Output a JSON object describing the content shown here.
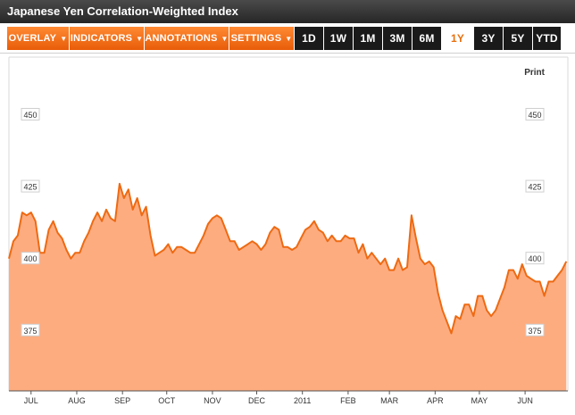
{
  "title": "Japanese Yen Correlation-Weighted Index",
  "toolbar": {
    "menus": [
      "OVERLAY",
      "INDICATORS",
      "ANNOTATIONS",
      "SETTINGS"
    ],
    "ranges": [
      "1D",
      "1W",
      "1M",
      "3M",
      "6M",
      "1Y",
      "3Y",
      "5Y",
      "YTD"
    ],
    "active_range": "1Y"
  },
  "print_label": "Print",
  "colors": {
    "accent": "#e8700e",
    "line": "#ee6a12",
    "fill": "#fdac80",
    "titlebar": "#333333"
  },
  "chart_data": {
    "type": "area",
    "title": "",
    "xlabel": "",
    "ylabel": "",
    "ylim": [
      354,
      470
    ],
    "yticks": [
      375,
      400,
      425,
      450
    ],
    "ytick_labels": [
      "375",
      "400",
      "425",
      "450"
    ],
    "x_range": [
      "2010-06-16",
      "2011-06-30"
    ],
    "xtick_labels": [
      "JUL",
      "AUG",
      "SEP",
      "OCT",
      "NOV",
      "DEC",
      "2011",
      "FEB",
      "MAR",
      "APR",
      "MAY",
      "JUN"
    ],
    "xtick_dates": [
      "2010-07-01",
      "2010-08-01",
      "2010-09-01",
      "2010-10-01",
      "2010-11-01",
      "2010-12-01",
      "2011-01-01",
      "2011-02-01",
      "2011-03-01",
      "2011-04-01",
      "2011-05-01",
      "2011-06-01"
    ],
    "grid": false,
    "series": [
      {
        "x": [
          "2010-06-16",
          "2010-06-19",
          "2010-06-22",
          "2010-06-25",
          "2010-06-28",
          "2010-07-01",
          "2010-07-04",
          "2010-07-07",
          "2010-07-10",
          "2010-07-13",
          "2010-07-16",
          "2010-07-19",
          "2010-07-22",
          "2010-07-25",
          "2010-07-28",
          "2010-07-31",
          "2010-08-03",
          "2010-08-06",
          "2010-08-09",
          "2010-08-12",
          "2010-08-15",
          "2010-08-18",
          "2010-08-21",
          "2010-08-24",
          "2010-08-27",
          "2010-08-30",
          "2010-09-02",
          "2010-09-05",
          "2010-09-08",
          "2010-09-11",
          "2010-09-14",
          "2010-09-17",
          "2010-09-20",
          "2010-09-23",
          "2010-09-26",
          "2010-09-29",
          "2010-10-02",
          "2010-10-05",
          "2010-10-08",
          "2010-10-11",
          "2010-10-14",
          "2010-10-17",
          "2010-10-20",
          "2010-10-23",
          "2010-10-26",
          "2010-10-29",
          "2010-11-01",
          "2010-11-04",
          "2010-11-07",
          "2010-11-10",
          "2010-11-13",
          "2010-11-16",
          "2010-11-19",
          "2010-11-22",
          "2010-11-25",
          "2010-11-28",
          "2010-12-01",
          "2010-12-04",
          "2010-12-07",
          "2010-12-10",
          "2010-12-13",
          "2010-12-16",
          "2010-12-19",
          "2010-12-22",
          "2010-12-25",
          "2010-12-28",
          "2010-12-31",
          "2011-01-03",
          "2011-01-06",
          "2011-01-09",
          "2011-01-12",
          "2011-01-15",
          "2011-01-18",
          "2011-01-21",
          "2011-01-24",
          "2011-01-27",
          "2011-01-30",
          "2011-02-02",
          "2011-02-05",
          "2011-02-08",
          "2011-02-11",
          "2011-02-14",
          "2011-02-17",
          "2011-02-20",
          "2011-02-23",
          "2011-02-26",
          "2011-03-01",
          "2011-03-04",
          "2011-03-07",
          "2011-03-10",
          "2011-03-13",
          "2011-03-16",
          "2011-03-19",
          "2011-03-22",
          "2011-03-25",
          "2011-03-28",
          "2011-03-31",
          "2011-04-03",
          "2011-04-06",
          "2011-04-09",
          "2011-04-12",
          "2011-04-15",
          "2011-04-18",
          "2011-04-21",
          "2011-04-24",
          "2011-04-27",
          "2011-04-30",
          "2011-05-03",
          "2011-05-06",
          "2011-05-09",
          "2011-05-12",
          "2011-05-15",
          "2011-05-18",
          "2011-05-21",
          "2011-05-24",
          "2011-05-27",
          "2011-05-30",
          "2011-06-02",
          "2011-06-05",
          "2011-06-08",
          "2011-06-11",
          "2011-06-14",
          "2011-06-17",
          "2011-06-20",
          "2011-06-23",
          "2011-06-26",
          "2011-06-29"
        ],
        "y": [
          400,
          406,
          408,
          416,
          415,
          416,
          413,
          402,
          402,
          410,
          413,
          409,
          407,
          403,
          400,
          402,
          402,
          406,
          409,
          413,
          416,
          413,
          417,
          414,
          413,
          426,
          421,
          424,
          417,
          421,
          415,
          418,
          408,
          401,
          402,
          403,
          405,
          402,
          404,
          404,
          403,
          402,
          402,
          405,
          408,
          412,
          414,
          415,
          414,
          410,
          406,
          406,
          403,
          404,
          405,
          406,
          405,
          403,
          405,
          409,
          411,
          410,
          404,
          404,
          403,
          404,
          407,
          410,
          411,
          413,
          410,
          409,
          406,
          408,
          406,
          406,
          408,
          407,
          407,
          402,
          405,
          400,
          402,
          400,
          398,
          400,
          396,
          396,
          400,
          396,
          397,
          415,
          407,
          400,
          398,
          399,
          397,
          388,
          382,
          378,
          374,
          380,
          379,
          384,
          384,
          380,
          387,
          387,
          382,
          380,
          382,
          386,
          390,
          396,
          396,
          393,
          398,
          394,
          393,
          392,
          392,
          387,
          392,
          392,
          394,
          396,
          399
        ]
      }
    ]
  }
}
